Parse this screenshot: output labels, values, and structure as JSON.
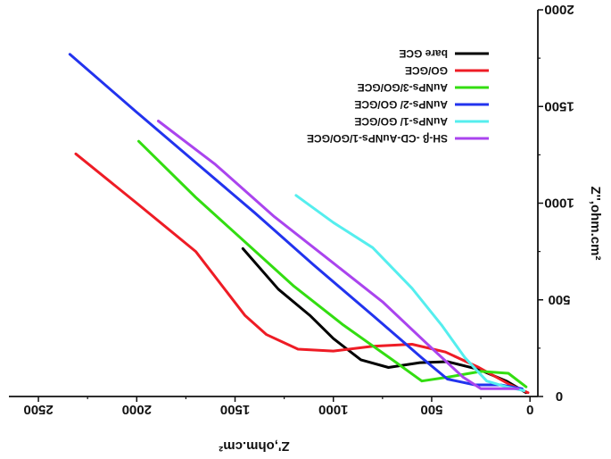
{
  "chart_data": {
    "type": "line",
    "xlabel": "Z',ohm.cm²",
    "ylabel": "Z'',ohm.cm²",
    "xlim": [
      2650,
      -40
    ],
    "ylim": [
      0,
      2000
    ],
    "x_ticks": [
      "2500",
      "2000",
      "1500",
      "1000",
      "500",
      "0"
    ],
    "y_ticks": [
      "0",
      "500",
      "1000",
      "1500",
      "2000"
    ],
    "legend_position": "top-right",
    "series": [
      {
        "name": "bare GCE",
        "color": "#000000",
        "points": [
          [
            1460,
            765
          ],
          [
            1280,
            555
          ],
          [
            1120,
            420
          ],
          [
            1000,
            300
          ],
          [
            860,
            190
          ],
          [
            720,
            150
          ],
          [
            560,
            175
          ],
          [
            420,
            180
          ],
          [
            260,
            140
          ],
          [
            120,
            80
          ],
          [
            20,
            20
          ]
        ]
      },
      {
        "name": "GO/GCE",
        "color": "#ee1c25",
        "points": [
          [
            2310,
            1255
          ],
          [
            2000,
            1000
          ],
          [
            1700,
            750
          ],
          [
            1450,
            420
          ],
          [
            1340,
            320
          ],
          [
            1180,
            245
          ],
          [
            1000,
            235
          ],
          [
            800,
            260
          ],
          [
            600,
            270
          ],
          [
            430,
            230
          ],
          [
            260,
            150
          ],
          [
            100,
            60
          ],
          [
            10,
            20
          ]
        ]
      },
      {
        "name": "AuNPs-3/GO/GCE",
        "color": "#33dd11",
        "points": [
          [
            1990,
            1320
          ],
          [
            1700,
            1030
          ],
          [
            1450,
            800
          ],
          [
            1200,
            570
          ],
          [
            950,
            370
          ],
          [
            700,
            190
          ],
          [
            550,
            80
          ],
          [
            420,
            100
          ],
          [
            250,
            130
          ],
          [
            110,
            120
          ],
          [
            20,
            50
          ]
        ]
      },
      {
        "name": "AuNPs-2/ GO/GCE",
        "color": "#2233ee",
        "points": [
          [
            2340,
            1770
          ],
          [
            2000,
            1470
          ],
          [
            1700,
            1210
          ],
          [
            1400,
            950
          ],
          [
            1100,
            680
          ],
          [
            800,
            420
          ],
          [
            550,
            200
          ],
          [
            420,
            90
          ],
          [
            280,
            60
          ],
          [
            150,
            60
          ],
          [
            40,
            40
          ]
        ]
      },
      {
        "name": "AuNPs-1/ GO/GCE",
        "color": "#55eeee",
        "points": [
          [
            1190,
            1040
          ],
          [
            1000,
            900
          ],
          [
            800,
            770
          ],
          [
            600,
            560
          ],
          [
            450,
            370
          ],
          [
            330,
            200
          ],
          [
            220,
            80
          ],
          [
            120,
            50
          ],
          [
            30,
            30
          ]
        ]
      },
      {
        "name": "SH-β -CD-AuNPs-1/GO/GCE",
        "color": "#aa44ee",
        "points": [
          [
            1890,
            1425
          ],
          [
            1600,
            1200
          ],
          [
            1300,
            930
          ],
          [
            1000,
            690
          ],
          [
            750,
            490
          ],
          [
            500,
            250
          ],
          [
            340,
            100
          ],
          [
            250,
            40
          ],
          [
            150,
            40
          ],
          [
            60,
            40
          ]
        ]
      }
    ]
  }
}
